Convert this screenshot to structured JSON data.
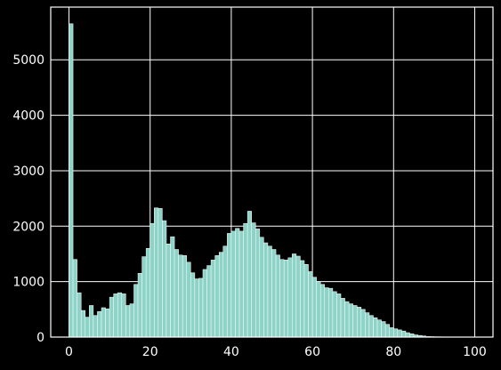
{
  "chart_data": {
    "type": "bar",
    "title": "",
    "xlabel": "",
    "ylabel": "",
    "xlim": [
      -4.5,
      104.5
    ],
    "ylim": [
      0,
      5950
    ],
    "bin_width": 1,
    "grid": true,
    "x_ticks": [
      0,
      20,
      40,
      60,
      80,
      100
    ],
    "y_ticks": [
      0,
      1000,
      2000,
      3000,
      4000,
      5000
    ],
    "categories": [
      0,
      1,
      2,
      3,
      4,
      5,
      6,
      7,
      8,
      9,
      10,
      11,
      12,
      13,
      14,
      15,
      16,
      17,
      18,
      19,
      20,
      21,
      22,
      23,
      24,
      25,
      26,
      27,
      28,
      29,
      30,
      31,
      32,
      33,
      34,
      35,
      36,
      37,
      38,
      39,
      40,
      41,
      42,
      43,
      44,
      45,
      46,
      47,
      48,
      49,
      50,
      51,
      52,
      53,
      54,
      55,
      56,
      57,
      58,
      59,
      60,
      61,
      62,
      63,
      64,
      65,
      66,
      67,
      68,
      69,
      70,
      71,
      72,
      73,
      74,
      75,
      76,
      77,
      78,
      79,
      80,
      81,
      82,
      83,
      84,
      85,
      86,
      87,
      88,
      89,
      90,
      91,
      92,
      93,
      94,
      95,
      96,
      97,
      98,
      99
    ],
    "values": [
      5650,
      1400,
      800,
      480,
      360,
      570,
      390,
      460,
      530,
      510,
      720,
      780,
      800,
      780,
      570,
      600,
      950,
      1150,
      1450,
      1600,
      2050,
      2330,
      2320,
      2100,
      1680,
      1810,
      1580,
      1480,
      1470,
      1350,
      1160,
      1050,
      1060,
      1220,
      1290,
      1390,
      1470,
      1530,
      1640,
      1870,
      1910,
      1960,
      1910,
      2050,
      2270,
      2060,
      1950,
      1800,
      1700,
      1640,
      1580,
      1480,
      1400,
      1390,
      1430,
      1500,
      1460,
      1380,
      1310,
      1180,
      1080,
      1000,
      950,
      890,
      880,
      820,
      780,
      700,
      640,
      600,
      570,
      540,
      500,
      440,
      390,
      350,
      310,
      280,
      230,
      170,
      150,
      130,
      110,
      80,
      60,
      40,
      30,
      20,
      10,
      8,
      6,
      5,
      4,
      3,
      2,
      2,
      1,
      1,
      1,
      1
    ],
    "colors": {
      "background": "#000000",
      "bar_fill": "#8dd3c7",
      "bar_edge": "#ffffff",
      "grid": "#ffffff",
      "tick_text": "#ffffff"
    }
  }
}
